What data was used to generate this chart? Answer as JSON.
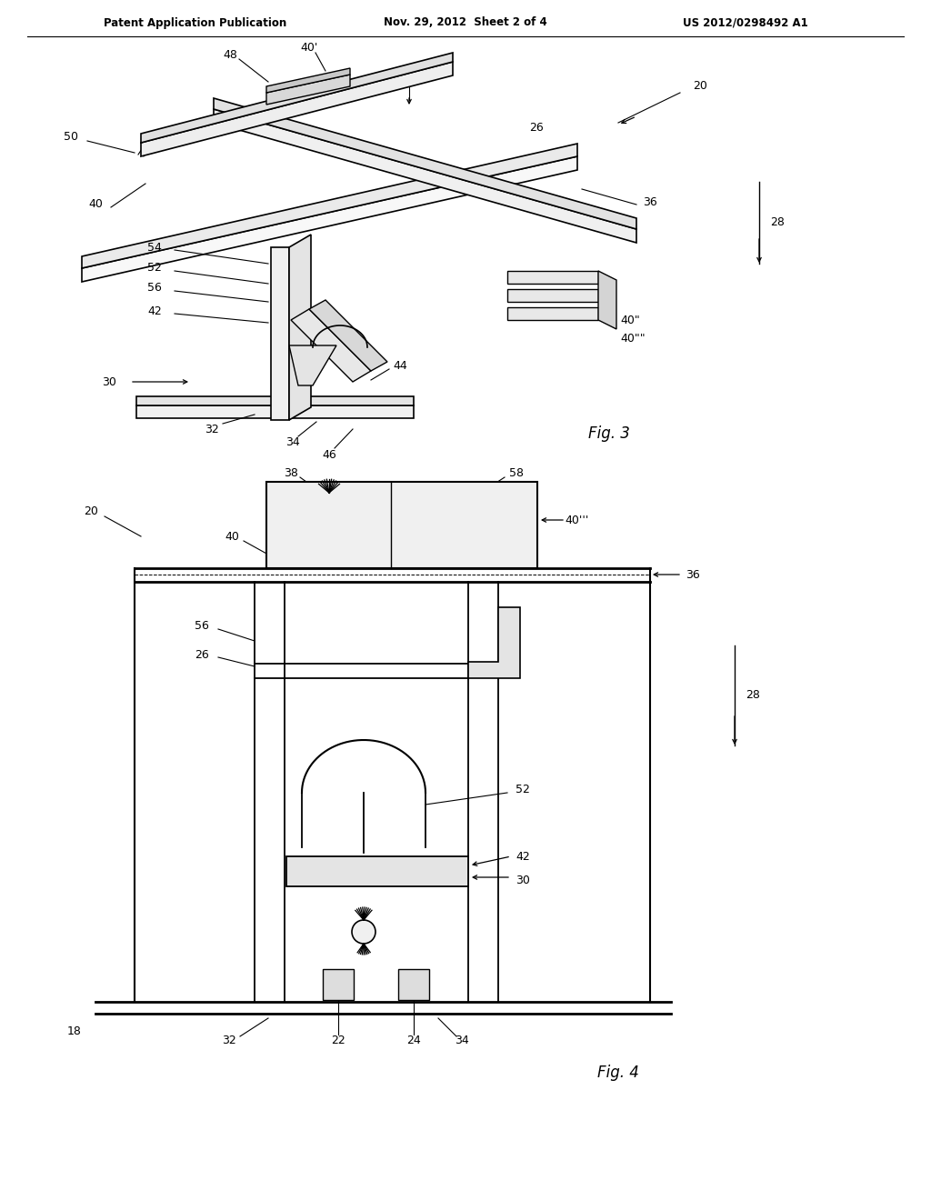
{
  "header_left": "Patent Application Publication",
  "header_mid": "Nov. 29, 2012  Sheet 2 of 4",
  "header_right": "US 2012/0298492 A1",
  "fig3_label": "Fig. 3",
  "fig4_label": "Fig. 4",
  "bg": "#ffffff",
  "lc": "#000000"
}
